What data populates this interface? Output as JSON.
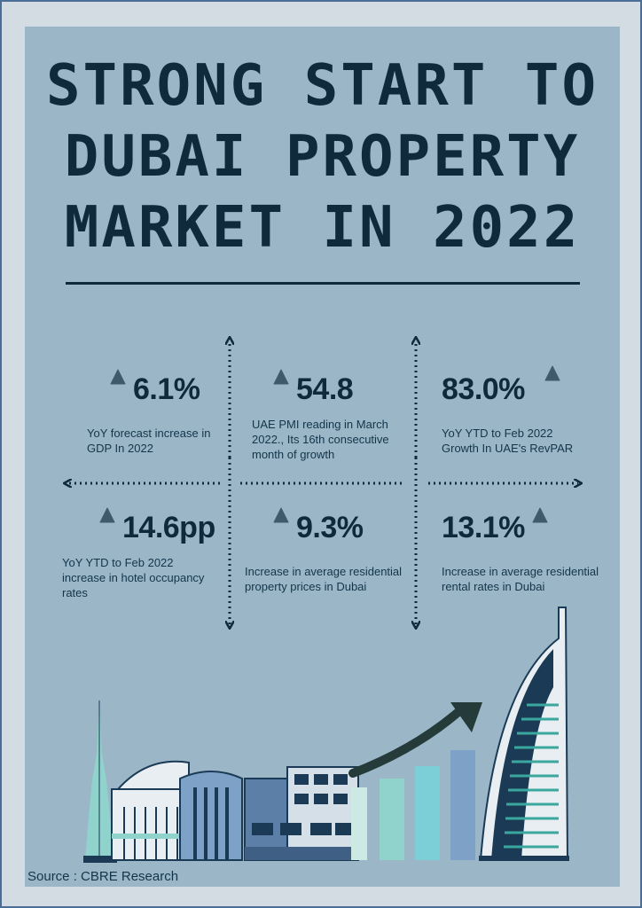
{
  "title": {
    "line1": "STRONG START TO",
    "line2": "DUBAI PROPERTY",
    "line3": "MARKET IN 2022"
  },
  "stats": [
    {
      "value": "6.1%",
      "description": "YoY forecast increase in GDP In 2022"
    },
    {
      "value": "54.8",
      "description": "UAE PMI reading in March 2022., Its 16th consecutive month of growth"
    },
    {
      "value": "83.0%",
      "description": "YoY YTD to Feb 2022 Growth In UAE's RevPAR"
    },
    {
      "value": "14.6pp",
      "description": "YoY YTD to Feb 2022 increase in hotel occupancy rates"
    },
    {
      "value": "9.3%",
      "description": "Increase in average residential property prices in Dubai"
    },
    {
      "value": "13.1%",
      "description": "Increase in average residential rental rates in Dubai"
    }
  ],
  "source": "Source : CBRE Research",
  "colors": {
    "panel": "#9bb6c7",
    "frame": "#d3dbe3",
    "navy": "#0f2a3a",
    "triangle": "#3f5a6b"
  },
  "icons": {
    "triangle": "up-triangle-icon",
    "arrow": "growth-arrow-icon"
  }
}
